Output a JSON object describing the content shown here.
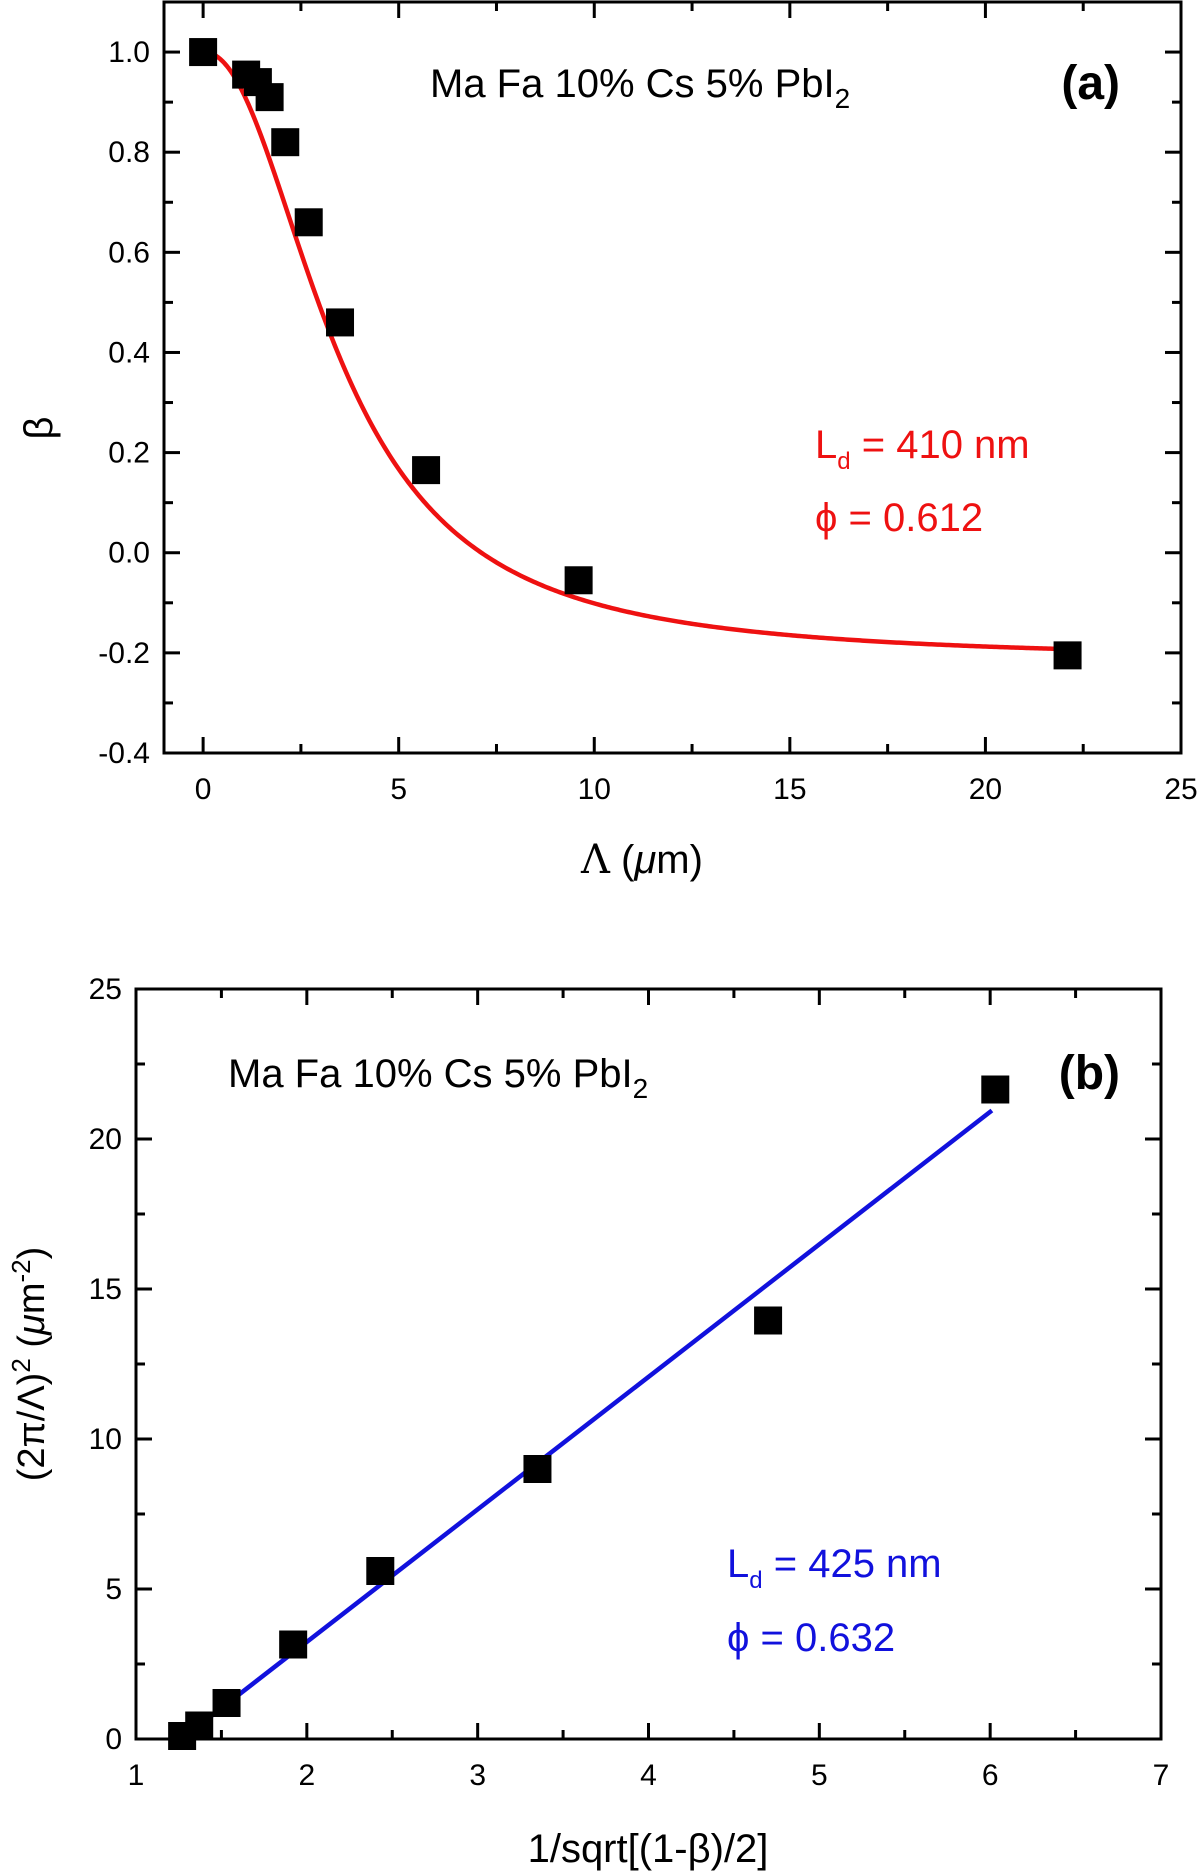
{
  "chart_data": [
    {
      "id": "a",
      "type": "scatter",
      "panel_label": "(a)",
      "title": "Ma Fa 10% Cs 5% PbI",
      "title_subscript": "2",
      "xlabel": "Λ (μm)",
      "xlabel_parts": {
        "symbol": "Λ",
        "open": " (",
        "mu": "μ",
        "unit": "m)"
      },
      "ylabel": "β",
      "xlim": [
        -1,
        25
      ],
      "ylim": [
        -0.4,
        1.1
      ],
      "xticks": [
        0,
        5,
        10,
        15,
        20,
        25
      ],
      "xtick_labels": [
        "0",
        "5",
        "10",
        "15",
        "20",
        "25"
      ],
      "yticks": [
        -0.4,
        -0.2,
        0.0,
        0.2,
        0.4,
        0.6,
        0.8,
        1.0
      ],
      "ytick_labels": [
        "-0.4",
        "-0.2",
        "0.0",
        "0.2",
        "0.4",
        "0.6",
        "0.8",
        "1.0"
      ],
      "points": {
        "x": [
          0.0,
          1.1,
          1.4,
          1.7,
          2.1,
          2.7,
          3.5,
          5.7,
          9.6,
          22.1
        ],
        "y": [
          1.0,
          0.955,
          0.94,
          0.91,
          0.82,
          0.66,
          0.46,
          0.165,
          -0.055,
          -0.205
        ]
      },
      "fit": {
        "model": "logistic",
        "color": "#ee1111",
        "params": {
          "A1": 1.0,
          "A2": -0.215,
          "x0": 3.48,
          "p": 2.15
        }
      },
      "annotations": [
        {
          "text": "L",
          "sub": "d",
          "rest": " = 410 nm",
          "color": "#ee1111"
        },
        {
          "text": "ϕ = 0.612",
          "color": "#ee1111"
        }
      ]
    },
    {
      "id": "b",
      "type": "scatter",
      "panel_label": "(b)",
      "title": "Ma Fa 10% Cs 5% PbI",
      "title_subscript": "2",
      "xlabel": "1/sqrt[(1-β)/2]",
      "ylabel": "(2π/Λ)² (μm⁻²)",
      "ylabel_parts": {
        "main": "(2π/Λ)",
        "sup": "2",
        "open": " (",
        "mu": "μ",
        "unit": "m",
        "sup2": "-2",
        "close": ")"
      },
      "xlim": [
        1,
        7
      ],
      "ylim": [
        0,
        25
      ],
      "xticks": [
        1,
        2,
        3,
        4,
        5,
        6,
        7
      ],
      "xtick_labels": [
        "1",
        "2",
        "3",
        "4",
        "5",
        "6",
        "7"
      ],
      "yticks": [
        0,
        5,
        10,
        15,
        20,
        25
      ],
      "ytick_labels": [
        "0",
        "5",
        "10",
        "15",
        "20",
        "25"
      ],
      "points": {
        "x": [
          1.27,
          1.37,
          1.53,
          1.92,
          2.43,
          3.35,
          4.7,
          6.03
        ],
        "y": [
          0.1,
          0.45,
          1.2,
          3.15,
          5.6,
          9.0,
          13.95,
          21.65
        ]
      },
      "fit": {
        "model": "linear",
        "color": "#1111dd",
        "from": [
          1.29,
          0.1
        ],
        "to": [
          6.01,
          20.95
        ]
      },
      "annotations": [
        {
          "text": "L",
          "sub": "d",
          "rest": " = 425 nm",
          "color": "#1111dd"
        },
        {
          "text": "ϕ = 0.632",
          "color": "#1111dd"
        }
      ]
    }
  ]
}
